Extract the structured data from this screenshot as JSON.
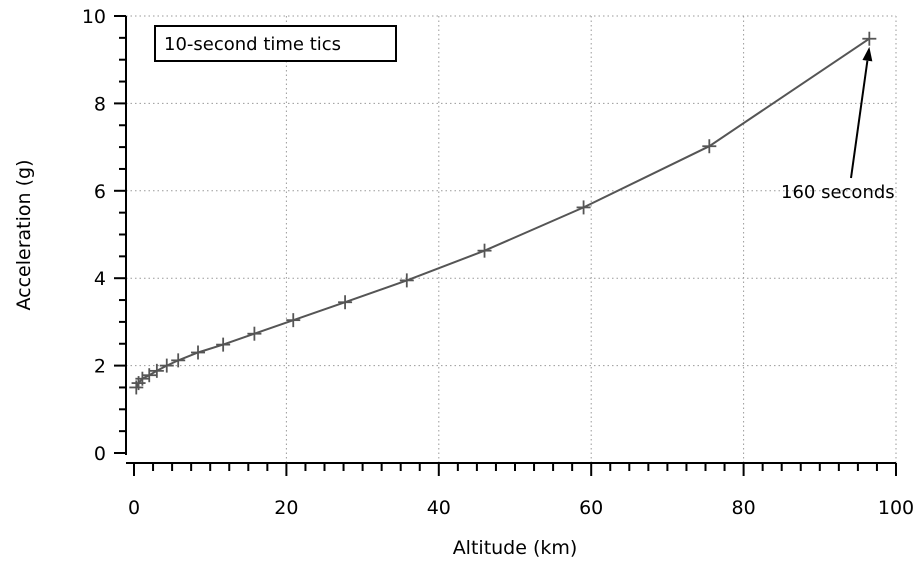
{
  "chart_data": {
    "type": "line",
    "title": "",
    "xlabel": "Altitude (km)",
    "ylabel": "Acceleration (g)",
    "xlim": [
      0,
      100
    ],
    "ylim": [
      0,
      10
    ],
    "x_ticks": [
      0,
      20,
      40,
      60,
      80,
      100
    ],
    "y_ticks": [
      0,
      2,
      4,
      6,
      8,
      10
    ],
    "x_tick_labels": [
      "0",
      "20",
      "40",
      "60",
      "80",
      "100"
    ],
    "y_tick_labels": [
      "0",
      "2",
      "4",
      "6",
      "8",
      "10"
    ],
    "grid": true,
    "legend_text": "10-second time tics",
    "legend_position": "top-left",
    "annotation": {
      "text": "160 seconds",
      "x": 96.5,
      "y": 9.5
    },
    "series": [
      {
        "marker": "plus",
        "color": "#555555",
        "x": [
          0.3,
          0.6,
          1.1,
          2.0,
          3.0,
          4.3,
          5.8,
          8.4,
          11.7,
          15.8,
          20.9,
          27.7,
          35.8,
          46.0,
          59.0,
          75.5,
          96.5
        ],
        "y": [
          1.5,
          1.6,
          1.7,
          1.78,
          1.88,
          2.0,
          2.12,
          2.3,
          2.48,
          2.73,
          3.04,
          3.45,
          3.95,
          4.63,
          5.62,
          7.02,
          9.48
        ]
      }
    ]
  }
}
